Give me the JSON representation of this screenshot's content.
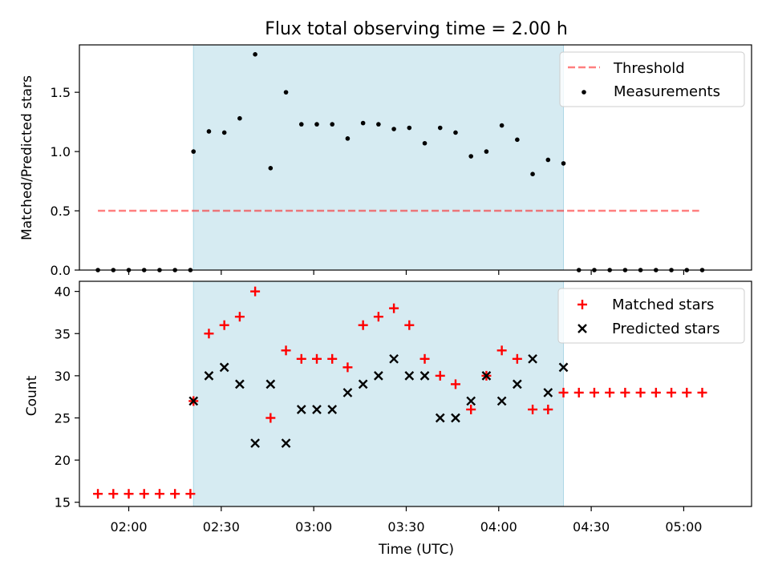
{
  "figure": {
    "title": "Flux total observing time = 2.00 h",
    "xlabel": "Time (UTC)"
  },
  "colors": {
    "shade": "#add8e6",
    "threshold": "#ff0000",
    "measurement": "#000000",
    "matched": "#ff0000",
    "predicted": "#000000"
  },
  "chart_data": [
    {
      "type": "scatter",
      "panel": "top",
      "ylabel": "Matched/Predicted stars",
      "ylim": [
        0,
        1.9
      ],
      "yticks": [
        0.0,
        0.5,
        1.0,
        1.5
      ],
      "ytick_labels": [
        "0.0",
        "0.5",
        "1.0",
        "1.5"
      ],
      "xlim": [
        "01:44",
        "05:22"
      ],
      "xticks": [
        "02:00",
        "02:30",
        "03:00",
        "03:30",
        "04:00",
        "04:30",
        "05:00"
      ],
      "shaded_region": [
        "02:21",
        "04:21"
      ],
      "legend": {
        "position": "top-right",
        "entries": [
          "Threshold",
          "Measurements"
        ]
      },
      "series": [
        {
          "name": "Threshold",
          "style": "dashed-line",
          "x": [
            "01:50",
            "05:05"
          ],
          "y": [
            0.5,
            0.5
          ]
        },
        {
          "name": "Measurements",
          "style": "dot",
          "x": [
            "01:50",
            "01:55",
            "02:00",
            "02:05",
            "02:10",
            "02:15",
            "02:20",
            "02:21",
            "02:26",
            "02:31",
            "02:36",
            "02:41",
            "02:46",
            "02:51",
            "02:56",
            "03:01",
            "03:06",
            "03:11",
            "03:16",
            "03:21",
            "03:26",
            "03:31",
            "03:36",
            "03:41",
            "03:46",
            "03:51",
            "03:56",
            "04:01",
            "04:06",
            "04:11",
            "04:16",
            "04:21",
            "04:26",
            "04:31",
            "04:36",
            "04:41",
            "04:46",
            "04:51",
            "04:56",
            "05:01",
            "05:06"
          ],
          "y": [
            0,
            0,
            0,
            0,
            0,
            0,
            0,
            1.0,
            1.17,
            1.16,
            1.28,
            1.82,
            0.86,
            1.5,
            1.23,
            1.23,
            1.23,
            1.11,
            1.24,
            1.23,
            1.19,
            1.2,
            1.07,
            1.2,
            1.16,
            0.96,
            1.0,
            1.22,
            1.1,
            0.81,
            0.93,
            0.9,
            0,
            0,
            0,
            0,
            0,
            0,
            0,
            0,
            0
          ]
        }
      ]
    },
    {
      "type": "scatter",
      "panel": "bottom",
      "ylabel": "Count",
      "ylim": [
        14.5,
        41.2
      ],
      "yticks": [
        15,
        20,
        25,
        30,
        35,
        40
      ],
      "ytick_labels": [
        "15",
        "20",
        "25",
        "30",
        "35",
        "40"
      ],
      "xlim": [
        "01:44",
        "05:22"
      ],
      "xticks": [
        "02:00",
        "02:30",
        "03:00",
        "03:30",
        "04:00",
        "04:30",
        "05:00"
      ],
      "xtick_labels": [
        "02:00",
        "02:30",
        "03:00",
        "03:30",
        "04:00",
        "04:30",
        "05:00"
      ],
      "shaded_region": [
        "02:21",
        "04:21"
      ],
      "legend": {
        "position": "top-right",
        "entries": [
          "Matched stars",
          "Predicted stars"
        ]
      },
      "series": [
        {
          "name": "Matched stars",
          "style": "plus",
          "x": [
            "01:50",
            "01:55",
            "02:00",
            "02:05",
            "02:10",
            "02:15",
            "02:20",
            "02:21",
            "02:26",
            "02:31",
            "02:36",
            "02:41",
            "02:46",
            "02:51",
            "02:56",
            "03:01",
            "03:06",
            "03:11",
            "03:16",
            "03:21",
            "03:26",
            "03:31",
            "03:36",
            "03:41",
            "03:46",
            "03:51",
            "03:56",
            "04:01",
            "04:06",
            "04:11",
            "04:16",
            "04:21",
            "04:26",
            "04:31",
            "04:36",
            "04:41",
            "04:46",
            "04:51",
            "04:56",
            "05:01",
            "05:06"
          ],
          "y": [
            16,
            16,
            16,
            16,
            16,
            16,
            16,
            27,
            35,
            36,
            37,
            40,
            25,
            33,
            32,
            32,
            32,
            31,
            36,
            37,
            38,
            36,
            32,
            30,
            29,
            26,
            30,
            33,
            32,
            26,
            26,
            28,
            28,
            28,
            28,
            28,
            28,
            28,
            28,
            28,
            28
          ]
        },
        {
          "name": "Predicted stars",
          "style": "x",
          "x": [
            "02:21",
            "02:26",
            "02:31",
            "02:36",
            "02:41",
            "02:46",
            "02:51",
            "02:56",
            "03:01",
            "03:06",
            "03:11",
            "03:16",
            "03:21",
            "03:26",
            "03:31",
            "03:36",
            "03:41",
            "03:46",
            "03:51",
            "03:56",
            "04:01",
            "04:06",
            "04:11",
            "04:16",
            "04:21"
          ],
          "y": [
            27,
            30,
            31,
            29,
            22,
            29,
            22,
            26,
            26,
            26,
            28,
            29,
            30,
            32,
            30,
            30,
            25,
            25,
            27,
            30,
            27,
            29,
            32,
            28,
            31
          ]
        }
      ]
    }
  ]
}
